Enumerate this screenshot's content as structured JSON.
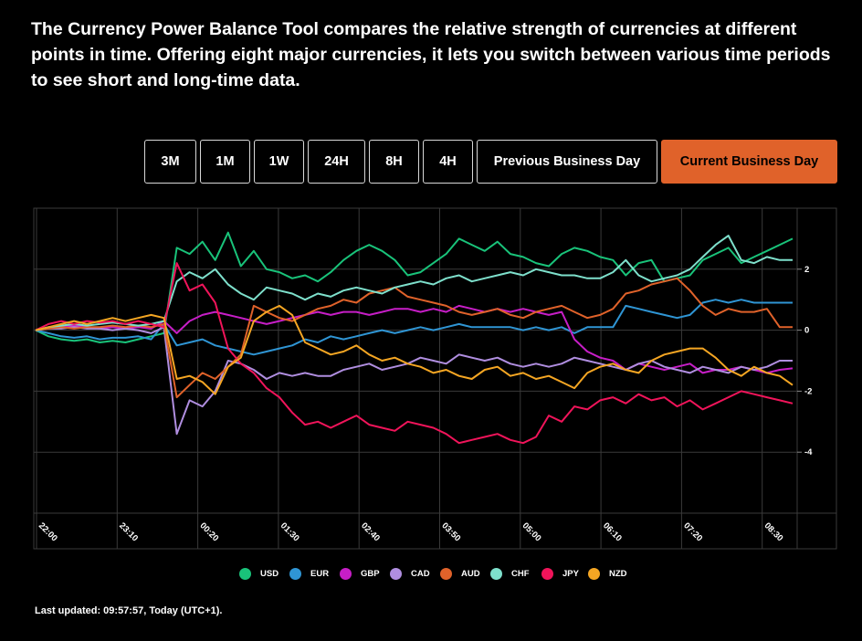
{
  "intro_text": "The Currency Power Balance Tool compares the relative strength of currencies at different points in time. Offering eight major currencies, it lets you switch between various time periods to see short and long-time data.",
  "period_buttons": [
    {
      "label": "3M",
      "active": false
    },
    {
      "label": "1M",
      "active": false
    },
    {
      "label": "1W",
      "active": false
    },
    {
      "label": "24H",
      "active": false
    },
    {
      "label": "8H",
      "active": false
    },
    {
      "label": "4H",
      "active": false
    },
    {
      "label": "Previous Business Day",
      "active": false
    },
    {
      "label": "Current Business Day",
      "active": true
    }
  ],
  "colors": {
    "accent": "#e0622a",
    "background": "#000000",
    "grid": "#3a3a3a"
  },
  "chart_data": {
    "type": "line",
    "x_tick_labels": [
      "22:00",
      "23:10",
      "00:20",
      "01:30",
      "02:40",
      "03:50",
      "05:00",
      "06:10",
      "07:20",
      "08:30"
    ],
    "y_ticks": [
      2,
      0,
      -2,
      -4
    ],
    "ylim": [
      -6,
      4
    ],
    "grid": true,
    "legend_position": "bottom",
    "series": [
      {
        "name": "USD",
        "color": "#19c37a",
        "values": [
          0,
          -0.2,
          -0.3,
          -0.35,
          -0.3,
          -0.4,
          -0.35,
          -0.4,
          -0.3,
          -0.2,
          -0.1,
          2.7,
          2.5,
          2.9,
          2.3,
          3.2,
          2.1,
          2.6,
          2.0,
          1.9,
          1.7,
          1.8,
          1.6,
          1.9,
          2.3,
          2.6,
          2.8,
          2.6,
          2.3,
          1.8,
          1.9,
          2.2,
          2.5,
          3.0,
          2.8,
          2.6,
          2.9,
          2.5,
          2.4,
          2.2,
          2.1,
          2.5,
          2.7,
          2.6,
          2.4,
          2.3,
          1.8,
          2.2,
          2.3,
          1.6,
          1.7,
          1.8,
          2.3,
          2.5,
          2.7,
          2.2,
          2.4,
          2.6,
          2.8,
          3.0
        ]
      },
      {
        "name": "EUR",
        "color": "#2f95d4",
        "values": [
          0,
          -0.1,
          -0.2,
          -0.25,
          -0.2,
          -0.3,
          -0.25,
          -0.25,
          -0.2,
          -0.3,
          0.2,
          -0.5,
          -0.4,
          -0.3,
          -0.5,
          -0.6,
          -0.7,
          -0.8,
          -0.7,
          -0.6,
          -0.5,
          -0.3,
          -0.4,
          -0.2,
          -0.3,
          -0.2,
          -0.1,
          0,
          -0.1,
          0,
          0.1,
          0,
          0.1,
          0.2,
          0.1,
          0.1,
          0.1,
          0.1,
          0,
          0.1,
          0,
          0.1,
          -0.1,
          0.1,
          0.1,
          0.1,
          0.8,
          0.7,
          0.6,
          0.5,
          0.4,
          0.5,
          0.9,
          1.0,
          0.9,
          1.0,
          0.9,
          0.9,
          0.9,
          0.9
        ]
      },
      {
        "name": "GBP",
        "color": "#c71ec7",
        "values": [
          0,
          0.1,
          0.1,
          0.15,
          0.1,
          0.05,
          0.1,
          0.05,
          0.1,
          0.05,
          0.3,
          -0.1,
          0.3,
          0.5,
          0.6,
          0.5,
          0.4,
          0.3,
          0.2,
          0.3,
          0.4,
          0.5,
          0.6,
          0.5,
          0.6,
          0.6,
          0.5,
          0.6,
          0.7,
          0.7,
          0.6,
          0.7,
          0.6,
          0.8,
          0.7,
          0.6,
          0.7,
          0.6,
          0.7,
          0.6,
          0.5,
          0.6,
          -0.3,
          -0.7,
          -0.9,
          -1.0,
          -1.3,
          -1.1,
          -1.2,
          -1.3,
          -1.2,
          -1.1,
          -1.4,
          -1.3,
          -1.3,
          -1.2,
          -1.3,
          -1.4,
          -1.3,
          -1.25
        ]
      },
      {
        "name": "CAD",
        "color": "#b08ee0",
        "values": [
          0,
          0.05,
          0.05,
          0.1,
          0.05,
          0.05,
          0,
          0.05,
          0,
          -0.1,
          0.1,
          -3.4,
          -2.3,
          -2.5,
          -2.0,
          -1.0,
          -1.1,
          -1.3,
          -1.6,
          -1.4,
          -1.5,
          -1.4,
          -1.5,
          -1.5,
          -1.3,
          -1.2,
          -1.1,
          -1.3,
          -1.2,
          -1.1,
          -0.9,
          -1.0,
          -1.1,
          -0.8,
          -0.9,
          -1.0,
          -0.9,
          -1.1,
          -1.2,
          -1.1,
          -1.2,
          -1.1,
          -0.9,
          -1.0,
          -1.1,
          -1.2,
          -1.3,
          -1.1,
          -1.0,
          -1.2,
          -1.3,
          -1.4,
          -1.2,
          -1.3,
          -1.4,
          -1.2,
          -1.3,
          -1.2,
          -1.0,
          -1.0
        ]
      },
      {
        "name": "AUD",
        "color": "#e0622a",
        "values": [
          0,
          0.05,
          0.1,
          0.05,
          0.1,
          0.1,
          0.15,
          0.1,
          0.15,
          0.1,
          0.2,
          -2.2,
          -1.8,
          -1.4,
          -1.6,
          -1.2,
          -0.8,
          0.8,
          0.6,
          0.4,
          0.3,
          0.5,
          0.7,
          0.8,
          1.0,
          0.9,
          1.2,
          1.3,
          1.4,
          1.1,
          1.0,
          0.9,
          0.8,
          0.6,
          0.5,
          0.6,
          0.7,
          0.5,
          0.4,
          0.6,
          0.7,
          0.8,
          0.6,
          0.4,
          0.5,
          0.7,
          1.2,
          1.3,
          1.5,
          1.6,
          1.7,
          1.3,
          0.8,
          0.5,
          0.7,
          0.6,
          0.6,
          0.7,
          0.1,
          0.1
        ]
      },
      {
        "name": "CHF",
        "color": "#7ee0cc",
        "values": [
          0,
          0.1,
          0.15,
          0.2,
          0.15,
          0.2,
          0.25,
          0.2,
          0.15,
          0.2,
          0.3,
          1.6,
          1.9,
          1.7,
          2.0,
          1.5,
          1.2,
          1.0,
          1.4,
          1.3,
          1.2,
          1.0,
          1.2,
          1.1,
          1.3,
          1.4,
          1.3,
          1.2,
          1.4,
          1.5,
          1.6,
          1.5,
          1.7,
          1.8,
          1.6,
          1.7,
          1.8,
          1.9,
          1.8,
          2.0,
          1.9,
          1.8,
          1.8,
          1.7,
          1.7,
          1.9,
          2.3,
          1.8,
          1.6,
          1.7,
          1.8,
          2.0,
          2.4,
          2.8,
          3.1,
          2.3,
          2.2,
          2.4,
          2.3,
          2.3
        ]
      },
      {
        "name": "JPY",
        "color": "#f0145a",
        "values": [
          0,
          0.2,
          0.3,
          0.2,
          0.3,
          0.25,
          0.3,
          0.2,
          0.3,
          0.2,
          0.1,
          2.2,
          1.3,
          1.5,
          0.9,
          -0.6,
          -1.1,
          -1.4,
          -1.9,
          -2.2,
          -2.7,
          -3.1,
          -3.0,
          -3.2,
          -3.0,
          -2.8,
          -3.1,
          -3.2,
          -3.3,
          -3.0,
          -3.1,
          -3.2,
          -3.4,
          -3.7,
          -3.6,
          -3.5,
          -3.4,
          -3.6,
          -3.7,
          -3.5,
          -2.8,
          -3.0,
          -2.5,
          -2.6,
          -2.3,
          -2.2,
          -2.4,
          -2.1,
          -2.3,
          -2.2,
          -2.5,
          -2.3,
          -2.6,
          -2.4,
          -2.2,
          -2.0,
          -2.1,
          -2.2,
          -2.3,
          -2.4
        ]
      },
      {
        "name": "NZD",
        "color": "#f5a623",
        "values": [
          0,
          0.1,
          0.2,
          0.3,
          0.2,
          0.3,
          0.4,
          0.3,
          0.4,
          0.5,
          0.4,
          -1.6,
          -1.5,
          -1.7,
          -2.1,
          -1.2,
          -0.9,
          0.3,
          0.6,
          0.8,
          0.5,
          -0.4,
          -0.6,
          -0.8,
          -0.7,
          -0.5,
          -0.8,
          -1.0,
          -0.9,
          -1.1,
          -1.2,
          -1.4,
          -1.3,
          -1.5,
          -1.6,
          -1.3,
          -1.2,
          -1.5,
          -1.4,
          -1.6,
          -1.5,
          -1.7,
          -1.9,
          -1.4,
          -1.2,
          -1.1,
          -1.3,
          -1.4,
          -1.0,
          -0.8,
          -0.7,
          -0.6,
          -0.6,
          -0.9,
          -1.3,
          -1.5,
          -1.2,
          -1.4,
          -1.5,
          -1.8
        ]
      }
    ]
  },
  "last_updated": "Last updated: 09:57:57, Today (UTC+1)."
}
